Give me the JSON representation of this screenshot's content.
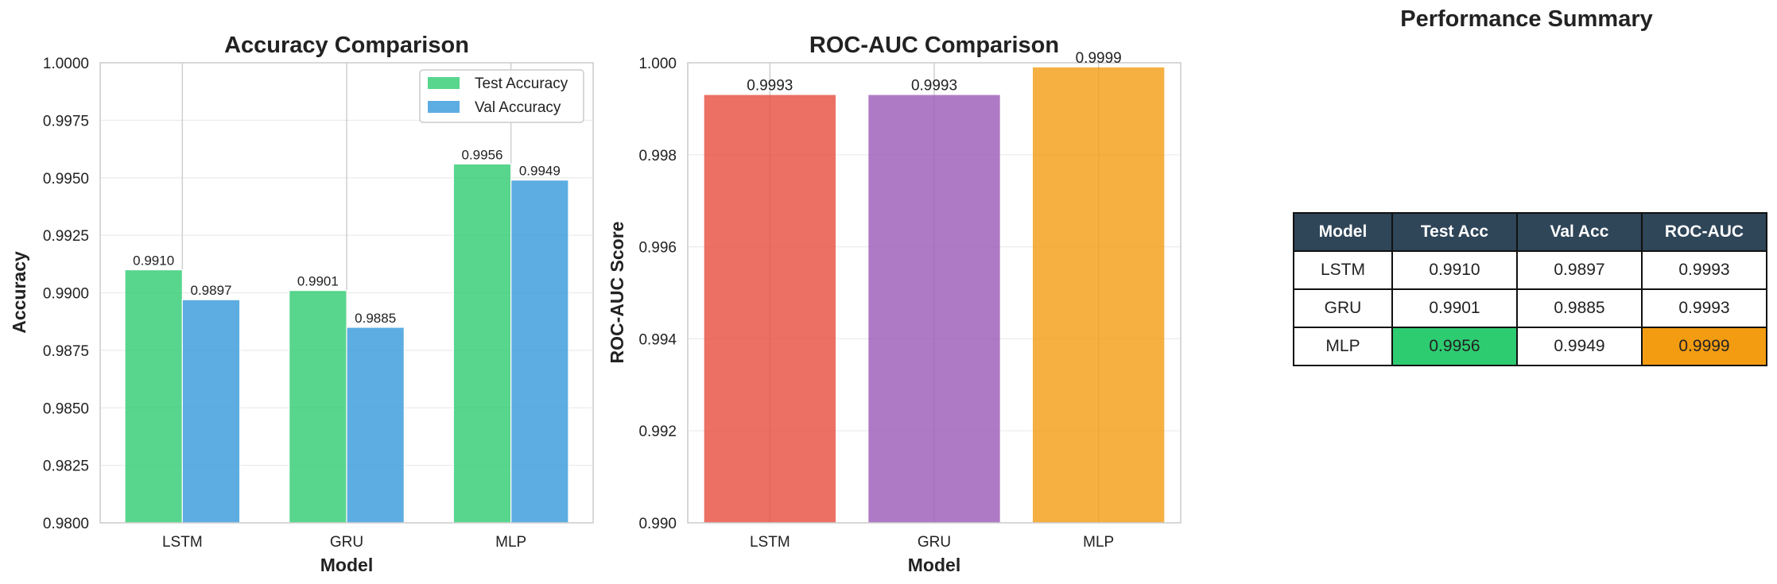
{
  "chart_data": [
    {
      "type": "bar",
      "title": "Accuracy Comparison",
      "xlabel": "Model",
      "ylabel": "Accuracy",
      "categories": [
        "LSTM",
        "GRU",
        "MLP"
      ],
      "series": [
        {
          "name": "Test Accuracy",
          "values": [
            0.991,
            0.9901,
            0.9956
          ],
          "labels": [
            "0.9910",
            "0.9901",
            "0.9956"
          ],
          "color": "#2ecc71"
        },
        {
          "name": "Val Accuracy",
          "values": [
            0.9897,
            0.9885,
            0.9949
          ],
          "labels": [
            "0.9897",
            "0.9885",
            "0.9949"
          ],
          "color": "#3498db"
        }
      ],
      "ylim": [
        0.98,
        1.0
      ],
      "yticks": [
        0.98,
        0.9825,
        0.985,
        0.9875,
        0.99,
        0.9925,
        0.995,
        0.9975,
        1.0
      ],
      "ytick_labels": [
        "0.9800",
        "0.9825",
        "0.9850",
        "0.9875",
        "0.9900",
        "0.9925",
        "0.9950",
        "0.9975",
        "1.0000"
      ],
      "grid": true,
      "legend": "top-right"
    },
    {
      "type": "bar",
      "title": "ROC-AUC Comparison",
      "xlabel": "Model",
      "ylabel": "ROC-AUC Score",
      "categories": [
        "LSTM",
        "GRU",
        "MLP"
      ],
      "values": [
        0.9993,
        0.9993,
        0.9999
      ],
      "labels": [
        "0.9993",
        "0.9993",
        "0.9999"
      ],
      "colors": [
        "#e74c3c",
        "#9b59b6",
        "#f39c12"
      ],
      "ylim": [
        0.99,
        1.0
      ],
      "yticks": [
        0.99,
        0.992,
        0.994,
        0.996,
        0.998,
        1.0
      ],
      "ytick_labels": [
        "0.990",
        "0.992",
        "0.994",
        "0.996",
        "0.998",
        "1.000"
      ],
      "grid": true
    },
    {
      "type": "table",
      "title": "Performance Summary",
      "columns": [
        "Model",
        "Test Acc",
        "Val Acc",
        "ROC-AUC"
      ],
      "rows": [
        [
          "LSTM",
          "0.9910",
          "0.9897",
          "0.9993"
        ],
        [
          "GRU",
          "0.9901",
          "0.9885",
          "0.9993"
        ],
        [
          "MLP",
          "0.9956",
          "0.9949",
          "0.9999"
        ]
      ],
      "highlights": {
        "test_acc_best_color": "#2ecc71",
        "roc_auc_best_color": "#f39c12"
      }
    }
  ]
}
